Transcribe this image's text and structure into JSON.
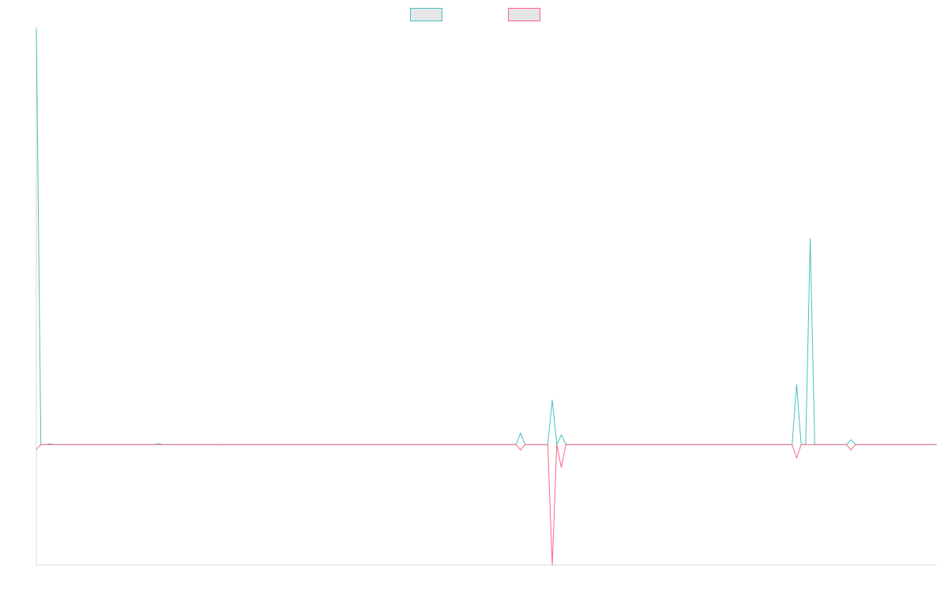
{
  "chart_data": {
    "type": "line",
    "title": "",
    "xlabel": "",
    "ylabel": "",
    "legend_position": "top-center",
    "grid": false,
    "x": [
      0,
      1,
      2,
      3,
      4,
      5,
      6,
      7,
      8,
      9,
      10,
      11,
      12,
      13,
      14,
      15,
      16,
      17,
      18,
      19,
      20,
      21,
      22,
      23,
      24,
      25,
      26,
      27,
      28,
      29,
      30,
      31,
      32,
      33,
      34,
      35,
      36,
      37,
      38,
      39,
      40,
      41,
      42,
      43,
      44,
      45,
      46,
      47,
      48,
      49,
      50,
      51,
      52,
      53,
      54,
      55,
      56,
      57,
      58,
      59,
      60,
      61,
      62,
      63,
      64,
      65,
      66,
      67,
      68,
      69,
      70,
      71,
      72,
      73,
      74,
      75,
      76,
      77,
      78,
      79,
      80,
      81,
      82,
      83,
      84,
      85,
      86,
      87,
      88,
      89,
      90,
      91,
      92,
      93,
      94,
      95,
      96,
      97,
      98,
      99,
      100,
      101,
      102,
      103,
      104,
      105,
      106,
      107,
      108,
      109,
      110,
      111,
      112,
      113,
      114,
      115,
      116,
      117,
      118,
      119,
      120,
      121,
      122,
      123,
      124,
      125,
      126,
      127,
      128,
      129,
      130,
      131,
      132,
      133,
      134,
      135,
      136,
      137,
      138,
      139,
      140,
      141,
      142,
      143,
      144,
      145,
      146,
      147,
      148,
      149,
      150,
      151,
      152,
      153,
      154,
      155,
      156,
      157,
      158,
      159,
      160,
      161,
      162,
      163,
      164,
      165,
      166,
      167,
      168,
      169,
      170,
      171,
      172,
      173,
      174,
      175,
      176,
      177,
      178,
      179,
      180,
      181,
      182,
      183,
      184,
      185,
      186,
      187,
      188,
      189,
      190,
      191,
      192,
      193,
      194,
      195,
      196,
      197,
      198,
      199
    ],
    "ylim": [
      -100,
      345
    ],
    "series": [
      {
        "color": "#4bc0c0",
        "fill": "#e6e6e6",
        "spikes": [
          [
            0,
            345
          ],
          [
            1,
            0
          ],
          [
            3,
            0.6
          ],
          [
            27,
            0.8
          ],
          [
            28,
            0
          ],
          [
            41,
            -0.3
          ],
          [
            42,
            0
          ],
          [
            107,
            9.5
          ],
          [
            108,
            0
          ],
          [
            114,
            37
          ],
          [
            115,
            0
          ],
          [
            116,
            8
          ],
          [
            117,
            0
          ],
          [
            168,
            50
          ],
          [
            169,
            0
          ],
          [
            171,
            171
          ],
          [
            172,
            0
          ],
          [
            180,
            4
          ],
          [
            181,
            0
          ]
        ]
      },
      {
        "color": "#ff6384",
        "fill": "#e6e6e6",
        "spikes": [
          [
            0,
            -4
          ],
          [
            1,
            0
          ],
          [
            3,
            0
          ],
          [
            27,
            0
          ],
          [
            28,
            0
          ],
          [
            41,
            0
          ],
          [
            42,
            0
          ],
          [
            107,
            -4.5
          ],
          [
            108,
            0
          ],
          [
            114,
            -100
          ],
          [
            115,
            0
          ],
          [
            116,
            -19
          ],
          [
            117,
            0
          ],
          [
            168,
            -11
          ],
          [
            169,
            0
          ],
          [
            171,
            0
          ],
          [
            172,
            0
          ],
          [
            180,
            -4.5
          ],
          [
            181,
            0
          ]
        ]
      }
    ]
  }
}
